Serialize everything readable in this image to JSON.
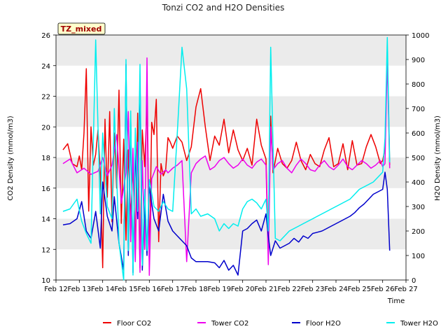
{
  "chart_data": {
    "type": "line",
    "title": "Tonzi CO2 and H2O Densities",
    "badge": "TZ_mixed",
    "xlabel": "Time",
    "ylabel_left": "CO2 Density (mmol/m3)",
    "ylabel_right": "H2O Density (mmol/m3)",
    "xlim": [
      12,
      27
    ],
    "ylim_left": [
      10,
      26
    ],
    "ylim_right": [
      0,
      1000
    ],
    "x_ticks": [
      12,
      13,
      14,
      15,
      16,
      17,
      18,
      19,
      20,
      21,
      22,
      23,
      24,
      25,
      26,
      27
    ],
    "x_tick_labels": [
      "Feb 12",
      "Feb 13",
      "Feb 14",
      "Feb 15",
      "Feb 16",
      "Feb 17",
      "Feb 18",
      "Feb 19",
      "Feb 20",
      "Feb 21",
      "Feb 22",
      "Feb 23",
      "Feb 24",
      "Feb 25",
      "Feb 26",
      "Feb 27"
    ],
    "y_left_ticks": [
      10,
      12,
      14,
      16,
      18,
      20,
      22,
      24,
      26
    ],
    "y_left_tick_labels": [
      "10",
      "12",
      "14",
      "16",
      "18",
      "20",
      "22",
      "24",
      "26"
    ],
    "y_right_ticks": [
      0,
      100,
      200,
      300,
      400,
      500,
      600,
      700,
      800,
      900,
      1000
    ],
    "y_right_tick_labels": [
      "0",
      "100",
      "200",
      "300",
      "400",
      "500",
      "600",
      "700",
      "800",
      "900",
      "1000"
    ],
    "grid": "banded",
    "legend_position": "bottom",
    "series": [
      {
        "name": "Floor CO2",
        "axis": "left",
        "color": "#ee0000",
        "x": [
          12.3,
          12.5,
          12.7,
          12.9,
          13.0,
          13.1,
          13.2,
          13.3,
          13.4,
          13.5,
          13.6,
          13.7,
          13.8,
          13.9,
          14.0,
          14.1,
          14.2,
          14.3,
          14.4,
          14.5,
          14.6,
          14.7,
          14.8,
          14.9,
          15.0,
          15.1,
          15.2,
          15.3,
          15.4,
          15.5,
          15.6,
          15.7,
          15.8,
          15.9,
          16.0,
          16.1,
          16.2,
          16.3,
          16.4,
          16.5,
          16.6,
          16.7,
          16.8,
          16.9,
          17.0,
          17.2,
          17.4,
          17.6,
          17.8,
          18.0,
          18.2,
          18.4,
          18.6,
          18.8,
          19.0,
          19.2,
          19.4,
          19.6,
          19.8,
          20.0,
          20.2,
          20.4,
          20.6,
          20.8,
          21.0,
          21.1,
          21.2,
          21.3,
          21.5,
          21.7,
          21.9,
          22.1,
          22.3,
          22.5,
          22.7,
          22.9,
          23.1,
          23.3,
          23.5,
          23.7,
          23.9,
          24.1,
          24.3,
          24.5,
          24.7,
          24.9,
          25.1,
          25.3,
          25.5,
          25.7,
          25.9,
          26.0,
          26.1,
          26.2,
          26.3
        ],
        "y": [
          18.5,
          18.9,
          17.6,
          17.4,
          18.1,
          17.2,
          19.6,
          23.8,
          14.5,
          20.0,
          17.5,
          18.2,
          19.8,
          17.0,
          10.8,
          20.5,
          15.4,
          21.0,
          13.8,
          19.6,
          16.0,
          22.4,
          13.7,
          19.2,
          12.6,
          18.5,
          14.0,
          17.5,
          12.0,
          20.9,
          10.8,
          19.8,
          17.4,
          21.6,
          11.0,
          20.3,
          19.5,
          21.8,
          12.5,
          17.6,
          16.8,
          17.2,
          19.3,
          19.0,
          18.6,
          19.4,
          19.0,
          17.8,
          18.7,
          21.3,
          22.5,
          20.0,
          17.8,
          19.4,
          18.8,
          20.5,
          18.3,
          19.8,
          18.5,
          17.8,
          18.6,
          17.5,
          20.5,
          18.8,
          17.9,
          12.0,
          20.7,
          17.0,
          18.6,
          17.6,
          17.3,
          17.8,
          19.0,
          17.8,
          17.2,
          18.2,
          17.6,
          17.4,
          18.5,
          19.3,
          17.4,
          17.6,
          18.9,
          17.2,
          19.1,
          17.5,
          17.6,
          18.7,
          19.5,
          18.7,
          17.6,
          17.8,
          18.6,
          25.0,
          17.5
        ]
      },
      {
        "name": "Tower CO2",
        "axis": "left",
        "color": "#ee00ee",
        "x": [
          12.3,
          12.6,
          12.9,
          13.2,
          13.5,
          13.8,
          14.0,
          14.2,
          14.4,
          14.6,
          14.8,
          15.0,
          15.1,
          15.2,
          15.3,
          15.4,
          15.5,
          15.6,
          15.7,
          15.8,
          15.9,
          16.0,
          16.1,
          16.3,
          16.5,
          16.7,
          16.8,
          17.0,
          17.2,
          17.4,
          17.6,
          17.8,
          18.0,
          18.2,
          18.4,
          18.6,
          18.8,
          19.0,
          19.2,
          19.4,
          19.6,
          19.8,
          20.0,
          20.2,
          20.4,
          20.6,
          20.8,
          21.0,
          21.1,
          21.2,
          21.3,
          21.5,
          21.7,
          21.9,
          22.1,
          22.3,
          22.5,
          22.7,
          22.9,
          23.1,
          23.3,
          23.5,
          23.7,
          23.9,
          24.1,
          24.3,
          24.5,
          24.7,
          24.9,
          25.1,
          25.3,
          25.5,
          25.7,
          25.9,
          26.0,
          26.1,
          26.2,
          26.3
        ],
        "y": [
          17.6,
          17.9,
          17.0,
          17.3,
          16.9,
          17.1,
          18.0,
          16.8,
          17.5,
          19.5,
          15.0,
          17.0,
          21.0,
          12.5,
          18.6,
          11.2,
          19.0,
          10.5,
          17.8,
          12.0,
          24.5,
          10.3,
          16.6,
          17.4,
          16.9,
          17.2,
          17.0,
          17.3,
          17.5,
          17.8,
          11.2,
          17.0,
          17.6,
          17.9,
          18.1,
          17.2,
          17.4,
          17.8,
          18.0,
          17.6,
          17.3,
          17.5,
          17.9,
          17.5,
          17.3,
          17.7,
          17.9,
          17.5,
          11.0,
          20.0,
          17.2,
          17.6,
          17.8,
          17.3,
          17.0,
          17.5,
          17.9,
          17.6,
          17.2,
          17.1,
          17.5,
          17.8,
          17.4,
          17.2,
          17.5,
          17.9,
          17.4,
          17.2,
          17.5,
          17.8,
          17.6,
          17.3,
          17.5,
          17.8,
          17.4,
          17.6,
          24.5,
          17.3
        ]
      },
      {
        "name": "Floor H2O",
        "axis": "right",
        "color": "#0000cc",
        "x": [
          12.3,
          12.6,
          12.9,
          13.1,
          13.3,
          13.5,
          13.7,
          13.9,
          14.0,
          14.2,
          14.4,
          14.5,
          14.7,
          14.9,
          15.0,
          15.1,
          15.2,
          15.3,
          15.4,
          15.5,
          15.6,
          15.7,
          15.8,
          15.9,
          16.0,
          16.2,
          16.4,
          16.6,
          16.8,
          17.0,
          17.2,
          17.4,
          17.6,
          17.8,
          18.0,
          18.2,
          18.5,
          18.8,
          19.0,
          19.2,
          19.4,
          19.6,
          19.8,
          20.0,
          20.2,
          20.4,
          20.6,
          20.8,
          21.0,
          21.1,
          21.2,
          21.4,
          21.6,
          21.8,
          22.0,
          22.2,
          22.4,
          22.6,
          22.8,
          23.0,
          23.2,
          23.4,
          23.6,
          23.8,
          24.0,
          24.2,
          24.4,
          24.6,
          24.8,
          25.0,
          25.2,
          25.4,
          25.6,
          25.8,
          26.0,
          26.1,
          26.2,
          26.3
        ],
        "y": [
          225,
          230,
          250,
          320,
          200,
          170,
          280,
          130,
          400,
          260,
          200,
          340,
          150,
          40,
          880,
          100,
          660,
          30,
          540,
          250,
          820,
          40,
          320,
          100,
          380,
          250,
          200,
          350,
          240,
          200,
          180,
          160,
          140,
          90,
          75,
          75,
          75,
          70,
          50,
          80,
          40,
          60,
          20,
          200,
          210,
          230,
          245,
          200,
          270,
          180,
          100,
          160,
          130,
          140,
          150,
          170,
          155,
          180,
          170,
          190,
          195,
          200,
          210,
          220,
          230,
          240,
          250,
          260,
          275,
          295,
          310,
          330,
          350,
          360,
          370,
          440,
          370,
          120
        ]
      },
      {
        "name": "Tower H2O",
        "axis": "right",
        "color": "#00eeee",
        "x": [
          12.3,
          12.6,
          12.9,
          13.1,
          13.3,
          13.5,
          13.7,
          13.9,
          14.0,
          14.2,
          14.4,
          14.5,
          14.7,
          14.9,
          15.0,
          15.1,
          15.2,
          15.3,
          15.4,
          15.5,
          15.6,
          15.7,
          15.8,
          15.9,
          16.0,
          16.2,
          16.4,
          16.6,
          16.8,
          17.0,
          17.2,
          17.4,
          17.6,
          17.8,
          18.0,
          18.2,
          18.5,
          18.8,
          19.0,
          19.2,
          19.4,
          19.6,
          19.8,
          20.0,
          20.2,
          20.4,
          20.6,
          20.8,
          21.0,
          21.1,
          21.2,
          21.4,
          21.6,
          21.8,
          22.0,
          22.2,
          22.4,
          22.6,
          22.8,
          23.0,
          23.2,
          23.4,
          23.6,
          23.8,
          24.0,
          24.2,
          24.4,
          24.6,
          24.8,
          25.0,
          25.2,
          25.4,
          25.6,
          25.8,
          26.0,
          26.1,
          26.2,
          26.3
        ],
        "y": [
          280,
          290,
          330,
          240,
          190,
          150,
          980,
          270,
          600,
          300,
          250,
          700,
          150,
          0,
          900,
          120,
          690,
          20,
          620,
          280,
          880,
          60,
          370,
          120,
          410,
          300,
          280,
          320,
          290,
          280,
          600,
          950,
          780,
          270,
          290,
          260,
          270,
          250,
          200,
          230,
          210,
          230,
          220,
          290,
          320,
          330,
          315,
          290,
          330,
          200,
          950,
          170,
          160,
          180,
          200,
          210,
          220,
          230,
          240,
          250,
          260,
          270,
          280,
          290,
          300,
          310,
          320,
          330,
          350,
          370,
          380,
          390,
          400,
          420,
          440,
          580,
          990,
          480
        ]
      }
    ]
  }
}
